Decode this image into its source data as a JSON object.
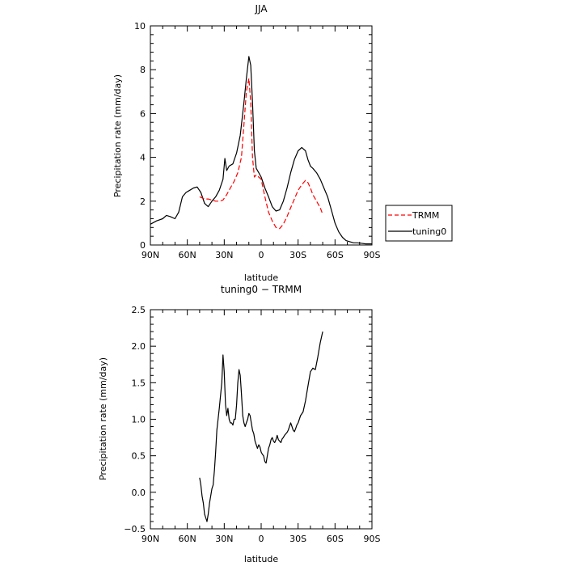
{
  "chart_data": [
    {
      "type": "line",
      "title": "JJA",
      "xlabel": "latitude",
      "ylabel": "Precipitation rate (mm/day)",
      "x_ticks": [
        "90N",
        "60N",
        "30N",
        "0",
        "30S",
        "60S",
        "90S"
      ],
      "xlim": [
        90,
        -90
      ],
      "ylim": [
        0,
        10
      ],
      "y_ticks": [
        "0",
        "2",
        "4",
        "6",
        "8",
        "10"
      ],
      "legend_placement": "right",
      "series": [
        {
          "name": "tuning0",
          "color": "#000000",
          "dash": "solid",
          "x": [
            90,
            85,
            80,
            77,
            74,
            70,
            67,
            64,
            61,
            58,
            55,
            52,
            49,
            46,
            43,
            40,
            37,
            34,
            31,
            29.5,
            28,
            26,
            23,
            20,
            17,
            14,
            12,
            10,
            8.5,
            7,
            5.5,
            4,
            2,
            0,
            -3,
            -6,
            -9,
            -12,
            -15,
            -18,
            -21,
            -24,
            -27,
            -30,
            -33,
            -36,
            -38,
            -40,
            -42,
            -45,
            -48,
            -51,
            -54,
            -57,
            -60,
            -63,
            -66,
            -69,
            -72,
            -75,
            -78,
            -81,
            -85,
            -90
          ],
          "y": [
            0.95,
            1.1,
            1.2,
            1.35,
            1.3,
            1.2,
            1.5,
            2.2,
            2.4,
            2.5,
            2.6,
            2.65,
            2.4,
            1.9,
            1.75,
            2.0,
            2.2,
            2.5,
            3.0,
            3.95,
            3.4,
            3.6,
            3.7,
            4.2,
            5.0,
            6.5,
            7.6,
            8.6,
            8.2,
            6.5,
            4.3,
            3.5,
            3.3,
            3.1,
            2.6,
            2.2,
            1.75,
            1.55,
            1.6,
            2.0,
            2.6,
            3.3,
            3.9,
            4.3,
            4.45,
            4.3,
            3.9,
            3.6,
            3.5,
            3.3,
            3.0,
            2.6,
            2.2,
            1.6,
            1.0,
            0.6,
            0.35,
            0.2,
            0.15,
            0.1,
            0.1,
            0.08,
            0.05,
            0.05
          ]
        },
        {
          "name": "TRMM",
          "color": "#ff0000",
          "dash": "dashed",
          "x": [
            50,
            46,
            43,
            40,
            37,
            34,
            31,
            28,
            25,
            22,
            19,
            16,
            14,
            12,
            10,
            8.5,
            7,
            5.5,
            4,
            2,
            0,
            -3,
            -6,
            -9,
            -12,
            -15,
            -18,
            -21,
            -24,
            -27,
            -30,
            -33,
            -36,
            -38,
            -40,
            -42,
            -45,
            -48,
            -50
          ],
          "y": [
            2.2,
            2.1,
            2.1,
            2.05,
            2.0,
            2.0,
            2.05,
            2.3,
            2.6,
            2.9,
            3.3,
            4.0,
            5.5,
            7.0,
            7.6,
            6.5,
            4.0,
            3.1,
            3.2,
            3.1,
            3.0,
            2.2,
            1.5,
            1.1,
            0.8,
            0.75,
            0.95,
            1.3,
            1.7,
            2.1,
            2.5,
            2.75,
            2.95,
            2.85,
            2.6,
            2.3,
            2.0,
            1.7,
            1.4
          ]
        }
      ]
    },
    {
      "type": "line",
      "title": "tuning0 − TRMM",
      "xlabel": "latitude",
      "ylabel": "Precipitation rate (mm/day)",
      "x_ticks": [
        "90N",
        "60N",
        "30N",
        "0",
        "30S",
        "60S",
        "90S"
      ],
      "xlim": [
        90,
        -90
      ],
      "ylim": [
        -0.5,
        2.5
      ],
      "y_ticks": [
        "−0.5",
        "0.0",
        "0.5",
        "1.0",
        "1.5",
        "2.0",
        "2.5"
      ],
      "series": [
        {
          "color": "#000000",
          "dash": "solid",
          "x": [
            50,
            49,
            48,
            47,
            46,
            45,
            44,
            43,
            42,
            41,
            40,
            39,
            38,
            37,
            36,
            34,
            32,
            31,
            30,
            29,
            28,
            27,
            26,
            25,
            24,
            23,
            22,
            21,
            20,
            19,
            18,
            17,
            16,
            15,
            14,
            13,
            12,
            11,
            10,
            9,
            8,
            7,
            6,
            5,
            4,
            3,
            2,
            1,
            0,
            -1,
            -2,
            -3,
            -4,
            -5,
            -6,
            -7,
            -8,
            -9,
            -10,
            -11,
            -12,
            -13,
            -14,
            -15,
            -16,
            -17,
            -18,
            -19,
            -20,
            -21,
            -22,
            -23,
            -24,
            -25,
            -26,
            -27,
            -28,
            -29,
            -30,
            -32,
            -34,
            -36,
            -38,
            -40,
            -42,
            -44,
            -46,
            -48,
            -50
          ],
          "y": [
            0.2,
            0.1,
            -0.05,
            -0.15,
            -0.3,
            -0.35,
            -0.4,
            -0.3,
            -0.15,
            -0.05,
            0.05,
            0.1,
            0.3,
            0.55,
            0.85,
            1.15,
            1.5,
            1.88,
            1.65,
            1.2,
            1.05,
            1.15,
            1.0,
            0.95,
            0.95,
            0.92,
            1.0,
            1.0,
            1.2,
            1.5,
            1.68,
            1.6,
            1.35,
            1.05,
            0.95,
            0.9,
            0.95,
            1.0,
            1.08,
            1.05,
            0.95,
            0.85,
            0.8,
            0.7,
            0.65,
            0.6,
            0.65,
            0.62,
            0.55,
            0.52,
            0.5,
            0.42,
            0.4,
            0.5,
            0.6,
            0.65,
            0.72,
            0.75,
            0.7,
            0.68,
            0.72,
            0.78,
            0.72,
            0.7,
            0.68,
            0.73,
            0.75,
            0.78,
            0.8,
            0.82,
            0.85,
            0.9,
            0.95,
            0.9,
            0.85,
            0.83,
            0.87,
            0.92,
            0.95,
            1.05,
            1.1,
            1.25,
            1.45,
            1.65,
            1.7,
            1.68,
            1.85,
            2.05,
            2.2
          ]
        }
      ]
    }
  ]
}
